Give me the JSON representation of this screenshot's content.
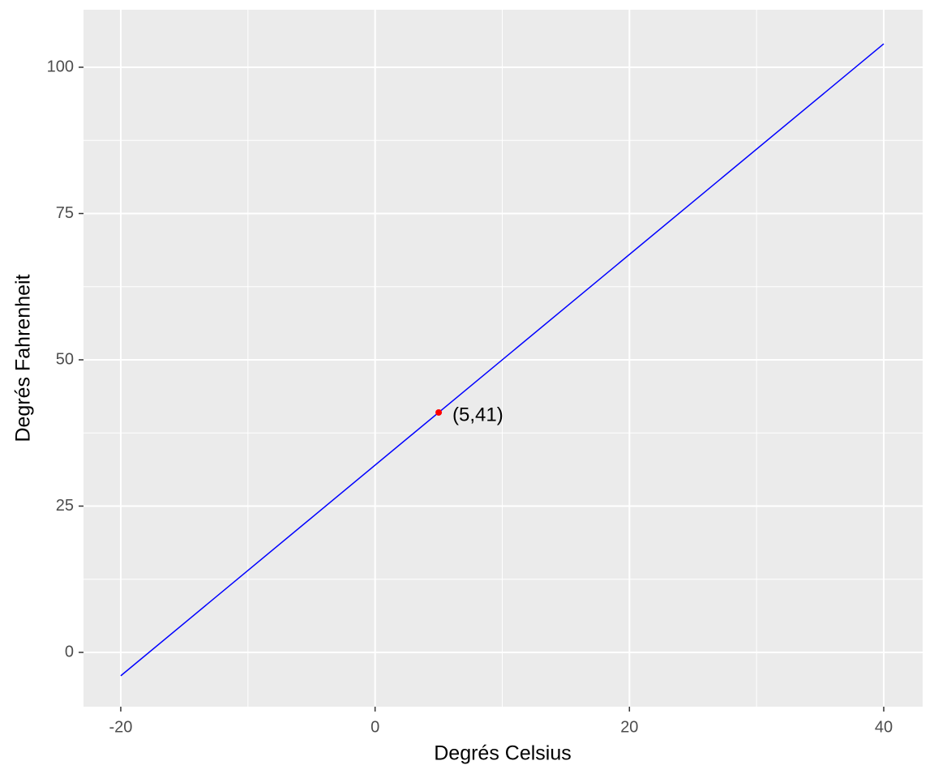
{
  "chart_data": {
    "type": "line",
    "x_label": "Degrés Celsius",
    "y_label": "Degrés Fahrenheit",
    "series": [
      {
        "color": "#0000ff",
        "x": [
          -20,
          40
        ],
        "values": [
          -4,
          104
        ]
      }
    ],
    "annotations": [
      {
        "x": 5,
        "y": 41,
        "label": "(5,41)",
        "color": "#ff0000"
      }
    ],
    "xlim": [
      -22.93,
      43.06
    ],
    "ylim": [
      -9.28,
      109.83
    ],
    "xticks": [
      -20,
      0,
      20,
      40
    ],
    "yticks": [
      0,
      25,
      50,
      75,
      100
    ],
    "xminor": [
      -10,
      10,
      30
    ],
    "yminor": [
      12.5,
      37.5,
      62.5,
      87.5
    ],
    "grid": true
  }
}
